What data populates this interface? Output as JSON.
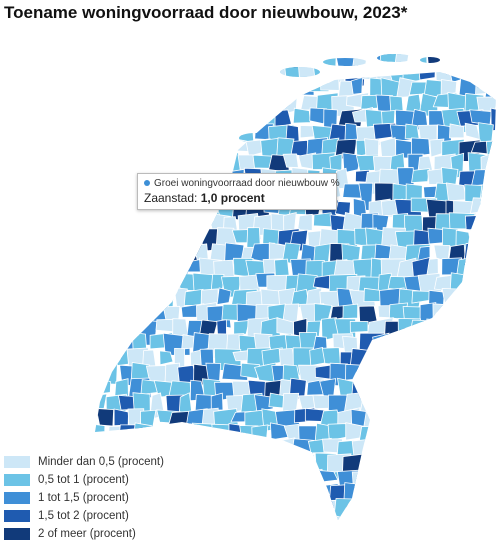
{
  "header": {
    "title": "Toename woningvoorraad door nieuwbouw, 2023*"
  },
  "tooltip": {
    "heading": "Groei woningvoorraad door nieuwbouw %",
    "place": "Zaanstad:",
    "value": "1,0 procent"
  },
  "legend": [
    {
      "label": "Minder dan 0,5 (procent)",
      "color": "#cde7f7"
    },
    {
      "label": "0,5 tot 1 (procent)",
      "color": "#6cc3e6"
    },
    {
      "label": "1 tot 1,5 (procent)",
      "color": "#3f8fd7"
    },
    {
      "label": "1,5 tot 2 (procent)",
      "color": "#1f5bb0"
    },
    {
      "label": "2 of meer (procent)",
      "color": "#113a7a"
    }
  ]
}
